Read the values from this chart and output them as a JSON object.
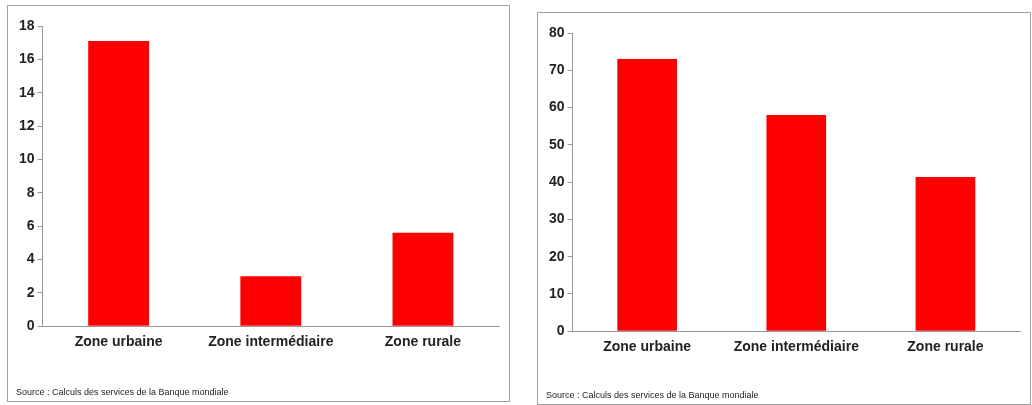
{
  "chart_data": [
    {
      "type": "bar",
      "categories": [
        "Zone urbaine",
        "Zone intermédiaire",
        "Zone rurale"
      ],
      "values": [
        17.1,
        3.0,
        5.6
      ],
      "color": "#ff0000",
      "ylim": [
        0,
        18
      ],
      "yticks": [
        0,
        2,
        4,
        6,
        8,
        10,
        12,
        14,
        16,
        18
      ],
      "grid": false,
      "legend": false,
      "annotations": [
        "Source : Calculs des services de la Banque mondiale"
      ]
    },
    {
      "type": "bar",
      "categories": [
        "Zone urbaine",
        "Zone intermédiaire",
        "Zone rurale"
      ],
      "values": [
        73,
        58,
        41.4
      ],
      "color": "#ff0000",
      "ylim": [
        0,
        80
      ],
      "yticks": [
        0,
        10,
        20,
        30,
        40,
        50,
        60,
        70,
        80
      ],
      "grid": false,
      "legend": false,
      "annotations": [
        "Source : Calculs des services de la Banque mondiale"
      ]
    }
  ]
}
